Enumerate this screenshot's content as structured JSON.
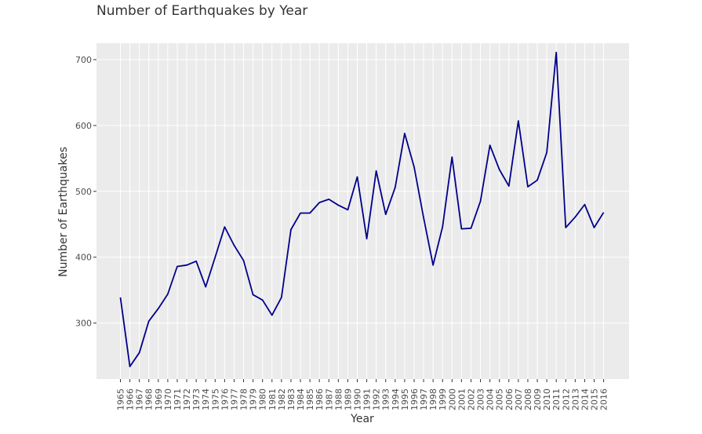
{
  "chart_data": {
    "type": "line",
    "title": "Number of Earthquakes by Year",
    "xlabel": "Year",
    "ylabel": "Number of Earthquakes",
    "x": [
      "1965",
      "1966",
      "1967",
      "1968",
      "1969",
      "1970",
      "1971",
      "1972",
      "1973",
      "1974",
      "1975",
      "1976",
      "1977",
      "1978",
      "1979",
      "1980",
      "1981",
      "1982",
      "1983",
      "1984",
      "1985",
      "1986",
      "1987",
      "1988",
      "1989",
      "1990",
      "1991",
      "1992",
      "1993",
      "1994",
      "1995",
      "1996",
      "1997",
      "1998",
      "1999",
      "2000",
      "2001",
      "2002",
      "2003",
      "2004",
      "2005",
      "2006",
      "2007",
      "2008",
      "2009",
      "2010",
      "2011",
      "2012",
      "2013",
      "2014",
      "2015",
      "2016"
    ],
    "values": [
      339,
      234,
      255,
      303,
      322,
      344,
      386,
      388,
      394,
      355,
      400,
      446,
      418,
      395,
      343,
      335,
      312,
      339,
      442,
      467,
      467,
      483,
      488,
      479,
      472,
      522,
      428,
      531,
      465,
      506,
      588,
      537,
      460,
      388,
      446,
      552,
      443,
      444,
      485,
      570,
      533,
      508,
      607,
      507,
      517,
      559,
      711,
      445,
      461,
      480,
      445,
      468
    ],
    "yticks": [
      300,
      400,
      500,
      600,
      700
    ],
    "ylim": [
      215,
      725
    ],
    "line_color": "#00008b",
    "plot_background": "#ebebeb",
    "grid_color": "#ffffff",
    "grid": true
  }
}
